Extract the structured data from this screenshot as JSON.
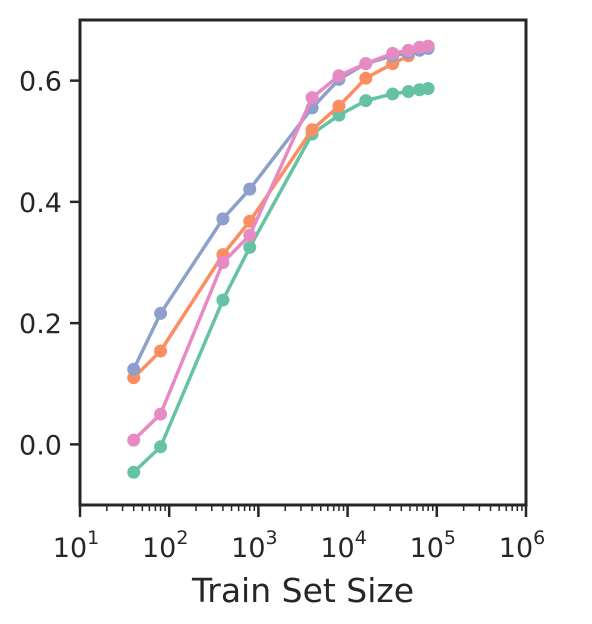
{
  "chart_data": {
    "type": "line",
    "title": "",
    "xlabel": "Train Set Size",
    "ylabel": "",
    "x_scale": "log",
    "xlim": [
      10,
      1000000
    ],
    "ylim": [
      -0.1,
      0.7
    ],
    "x_ticks": [
      {
        "value": 10,
        "base": "10",
        "exp": "1"
      },
      {
        "value": 100,
        "base": "10",
        "exp": "2"
      },
      {
        "value": 1000,
        "base": "10",
        "exp": "3"
      },
      {
        "value": 10000,
        "base": "10",
        "exp": "4"
      },
      {
        "value": 100000,
        "base": "10",
        "exp": "5"
      },
      {
        "value": 1000000,
        "base": "10",
        "exp": "6"
      }
    ],
    "y_ticks": [
      {
        "value": 0.0,
        "label": "0.0"
      },
      {
        "value": 0.2,
        "label": "0.2"
      },
      {
        "value": 0.4,
        "label": "0.4"
      },
      {
        "value": 0.6,
        "label": "0.6"
      }
    ],
    "grid": false,
    "legend": "none",
    "series": [
      {
        "color": "#66c2a5",
        "x": [
          40,
          80,
          400,
          800,
          4000,
          8000,
          16000,
          32000,
          48000,
          64000,
          80000
        ],
        "values": [
          -0.046,
          -0.004,
          0.238,
          0.325,
          0.512,
          0.543,
          0.567,
          0.578,
          0.582,
          0.585,
          0.587
        ]
      },
      {
        "color": "#fc8d62",
        "x": [
          40,
          80,
          400,
          800,
          4000,
          8000,
          16000,
          32000,
          48000,
          64000,
          80000
        ],
        "values": [
          0.11,
          0.154,
          0.313,
          0.368,
          0.519,
          0.558,
          0.604,
          0.628,
          0.641,
          0.651,
          0.656
        ]
      },
      {
        "color": "#8da0cb",
        "x": [
          40,
          80,
          400,
          800,
          4000,
          8000,
          16000,
          32000,
          48000,
          64000,
          80000
        ],
        "values": [
          0.124,
          0.216,
          0.372,
          0.421,
          0.555,
          0.602,
          0.628,
          0.641,
          0.646,
          0.65,
          0.653
        ]
      },
      {
        "color": "#e78ac3",
        "x": [
          40,
          80,
          400,
          800,
          4000,
          8000,
          16000,
          32000,
          48000,
          64000,
          80000
        ],
        "values": [
          0.007,
          0.05,
          0.3,
          0.345,
          0.572,
          0.608,
          0.628,
          0.645,
          0.65,
          0.655,
          0.657
        ]
      }
    ]
  }
}
